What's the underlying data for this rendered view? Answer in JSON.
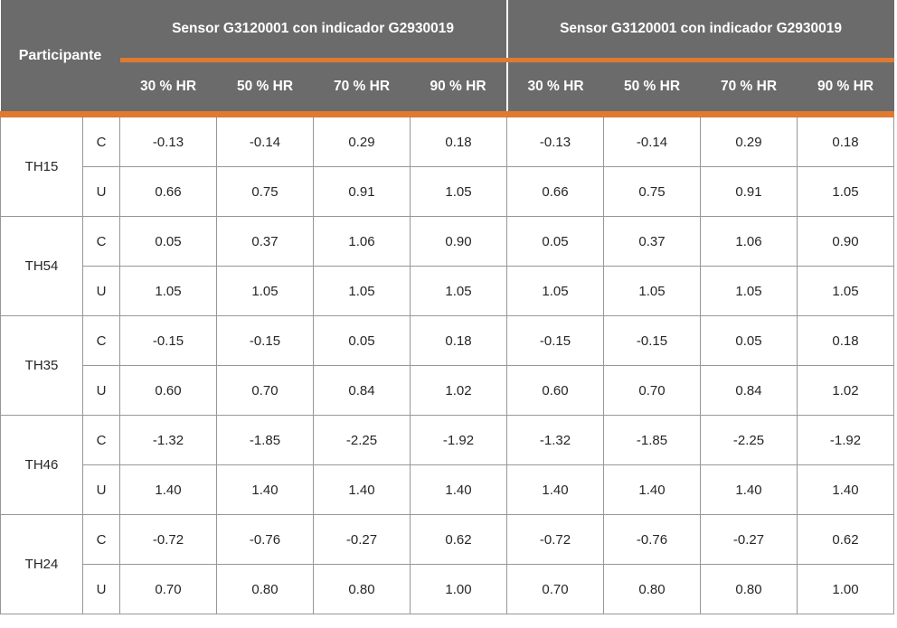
{
  "colors": {
    "header_bg": "#6b6b6b",
    "header_text": "#ffffff",
    "accent_orange": "#e07a30",
    "grid_border": "#979797",
    "body_text": "#262626",
    "page_bg": "#ffffff"
  },
  "header": {
    "participant_label": "Participante",
    "group1_title": "Sensor G3120001 con indicador G2930019",
    "group2_title": "Sensor G3120001 con indicador G2930019",
    "subheaders_g1": [
      "30 % HR",
      "50 % HR",
      "70 % HR",
      "90 % HR"
    ],
    "subheaders_g2": [
      "30 % HR",
      "50 % HR",
      "70 % HR",
      "90 % HR"
    ]
  },
  "rows": [
    {
      "participant": "TH15",
      "c": {
        "label": "C",
        "values": [
          "-0.13",
          "-0.14",
          "0.29",
          "0.18",
          "-0.13",
          "-0.14",
          "0.29",
          "0.18"
        ]
      },
      "u": {
        "label": "U",
        "values": [
          "0.66",
          "0.75",
          "0.91",
          "1.05",
          "0.66",
          "0.75",
          "0.91",
          "1.05"
        ]
      }
    },
    {
      "participant": "TH54",
      "c": {
        "label": "C",
        "values": [
          "0.05",
          "0.37",
          "1.06",
          "0.90",
          "0.05",
          "0.37",
          "1.06",
          "0.90"
        ]
      },
      "u": {
        "label": "U",
        "values": [
          "1.05",
          "1.05",
          "1.05",
          "1.05",
          "1.05",
          "1.05",
          "1.05",
          "1.05"
        ]
      }
    },
    {
      "participant": "TH35",
      "c": {
        "label": "C",
        "values": [
          "-0.15",
          "-0.15",
          "0.05",
          "0.18",
          "-0.15",
          "-0.15",
          "0.05",
          "0.18"
        ]
      },
      "u": {
        "label": "U",
        "values": [
          "0.60",
          "0.70",
          "0.84",
          "1.02",
          "0.60",
          "0.70",
          "0.84",
          "1.02"
        ]
      }
    },
    {
      "participant": "TH46",
      "c": {
        "label": "C",
        "values": [
          "-1.32",
          "-1.85",
          "-2.25",
          "-1.92",
          "-1.32",
          "-1.85",
          "-2.25",
          "-1.92"
        ]
      },
      "u": {
        "label": "U",
        "values": [
          "1.40",
          "1.40",
          "1.40",
          "1.40",
          "1.40",
          "1.40",
          "1.40",
          "1.40"
        ]
      }
    },
    {
      "participant": "TH24",
      "c": {
        "label": "C",
        "values": [
          "-0.72",
          "-0.76",
          "-0.27",
          "0.62",
          "-0.72",
          "-0.76",
          "-0.27",
          "0.62"
        ]
      },
      "u": {
        "label": "U",
        "values": [
          "0.70",
          "0.80",
          "0.80",
          "1.00",
          "0.70",
          "0.80",
          "0.80",
          "1.00"
        ]
      }
    }
  ]
}
